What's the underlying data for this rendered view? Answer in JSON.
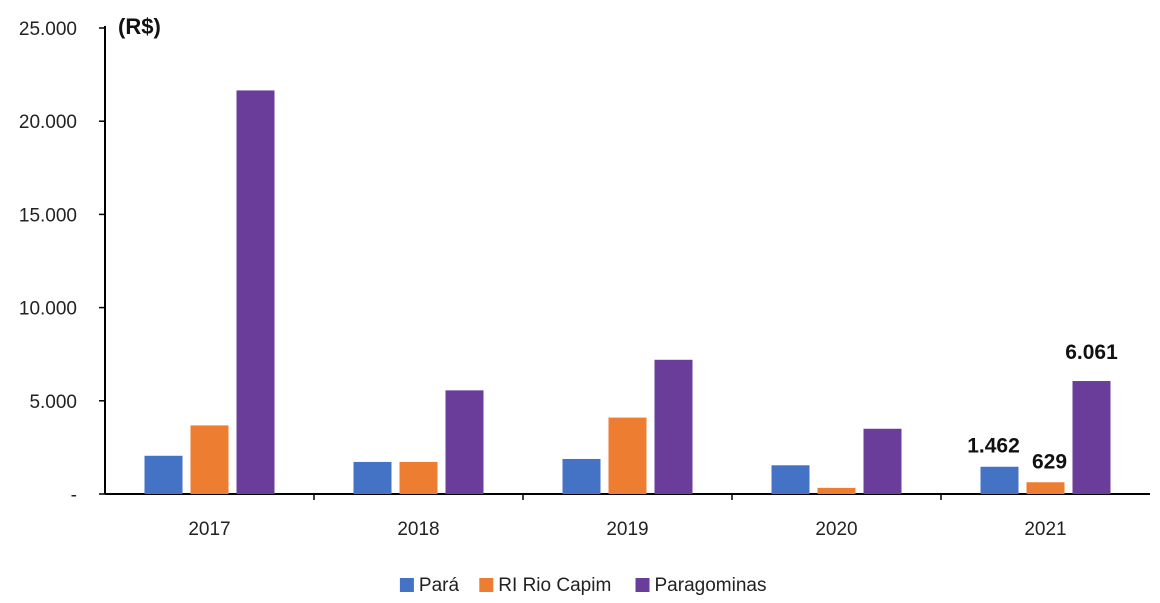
{
  "chart_data": {
    "type": "bar",
    "title": "",
    "unit_label": "(R$)",
    "xlabel": "",
    "ylabel": "",
    "categories": [
      "2017",
      "2018",
      "2019",
      "2020",
      "2021"
    ],
    "series": [
      {
        "name": "Pará",
        "color": "#4472C4",
        "values": [
          2050,
          1720,
          1880,
          1540,
          1462
        ]
      },
      {
        "name": "RI Rio Capim",
        "color": "#ED7D31",
        "values": [
          3680,
          1720,
          4100,
          330,
          629
        ]
      },
      {
        "name": "Paragominas",
        "color": "#6A3D9A",
        "values": [
          21650,
          5560,
          7200,
          3500,
          6061
        ]
      }
    ],
    "ylim": [
      0,
      25000
    ],
    "y_ticks": [
      {
        "value": 0,
        "label": "-"
      },
      {
        "value": 5000,
        "label": "5.000"
      },
      {
        "value": 10000,
        "label": "10.000"
      },
      {
        "value": 15000,
        "label": "15.000"
      },
      {
        "value": 20000,
        "label": "20.000"
      },
      {
        "value": 25000,
        "label": "25.000"
      }
    ],
    "data_labels": [
      {
        "series": 0,
        "category": 4,
        "text": "1.462"
      },
      {
        "series": 1,
        "category": 4,
        "text": "629"
      },
      {
        "series": 2,
        "category": 4,
        "text": "6.061"
      }
    ],
    "grid": false,
    "legend_position": "bottom"
  }
}
